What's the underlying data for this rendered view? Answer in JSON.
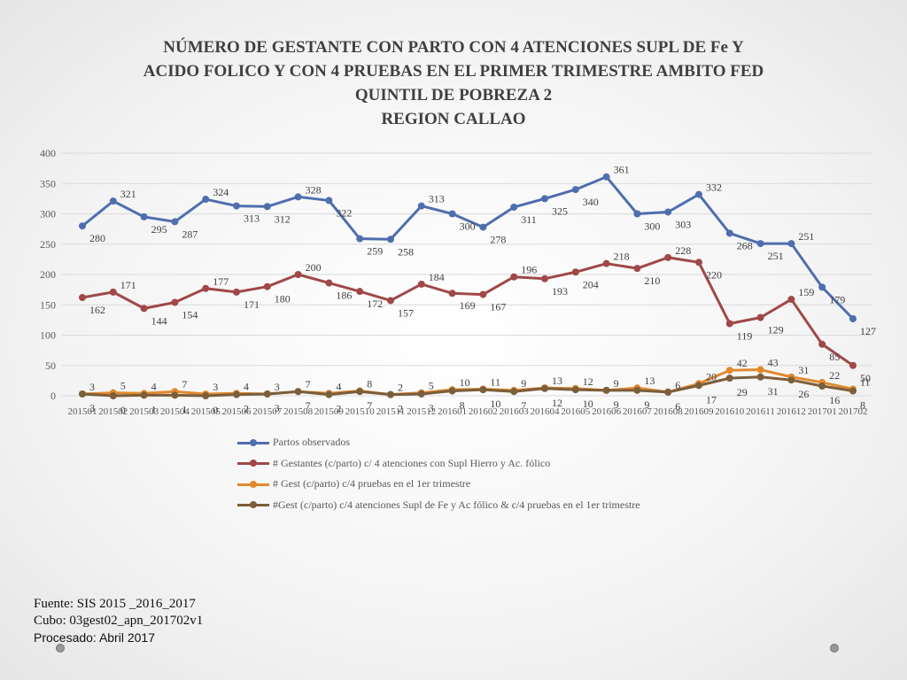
{
  "title_lines": [
    "NÚMERO DE GESTANTE  CON PARTO CON 4 ATENCIONES SUPL DE Fe Y",
    "ACIDO FOLICO  Y CON 4 PRUEBAS EN EL PRIMER TRIMESTRE AMBITO FED",
    "QUINTIL DE POBREZA  2",
    "REGION CALLAO"
  ],
  "footer": {
    "source": "Fuente: SIS 2015 _2016_2017",
    "cube": "Cubo:  03gest02_apn_201702v1",
    "processed": "Procesado: Abril 2017"
  },
  "chart_data": {
    "type": "line",
    "title": "NÚMERO DE GESTANTE  CON PARTO CON 4 ATENCIONES SUPL DE Fe Y ACIDO FOLICO  Y CON 4 PRUEBAS EN EL PRIMER TRIMESTRE AMBITO FED QUINTIL DE POBREZA  2 REGION CALLAO",
    "ylim": [
      0,
      400
    ],
    "yticks": [
      0,
      50,
      100,
      150,
      200,
      250,
      300,
      350,
      400
    ],
    "grid": true,
    "legend_position": "bottom",
    "categories": [
      "201501",
      "201502",
      "201503",
      "201504",
      "201505",
      "201506",
      "201507",
      "201508",
      "201509",
      "201510",
      "201511",
      "201512",
      "201601",
      "201602",
      "201603",
      "201604",
      "201605",
      "201606",
      "201607",
      "201608",
      "201609",
      "201610",
      "201611",
      "201612",
      "201701",
      "201702"
    ],
    "series": [
      {
        "name": "Partos observados",
        "color": "#4f6eae",
        "values": [
          280,
          321,
          295,
          287,
          324,
          313,
          312,
          328,
          322,
          259,
          258,
          313,
          300,
          278,
          311,
          325,
          340,
          361,
          300,
          303,
          332,
          268,
          251,
          251,
          179,
          127
        ]
      },
      {
        "name": "# Gestantes (c/parto) c/ 4 atenciones con Supl Hierro y Ac. fólico",
        "color": "#a04848",
        "values": [
          162,
          171,
          144,
          154,
          177,
          171,
          180,
          200,
          186,
          172,
          157,
          184,
          169,
          167,
          196,
          193,
          204,
          218,
          210,
          228,
          220,
          119,
          129,
          159,
          85,
          50
        ]
      },
      {
        "name": "# Gest (c/parto) c/4 pruebas en el 1er trimestre",
        "color": "#e2892e",
        "values": [
          3,
          5,
          4,
          7,
          3,
          4,
          3,
          7,
          4,
          8,
          2,
          5,
          10,
          11,
          9,
          13,
          12,
          9,
          13,
          6,
          20,
          42,
          43,
          31,
          22,
          11
        ]
      },
      {
        "name": "#Gest (c/parto) c/4 atenciones Supl de Fe y Ac fólico & c/4 pruebas en el 1er trimestre",
        "color": "#7b5e3b",
        "values": [
          3,
          0,
          1,
          1,
          0,
          2,
          3,
          7,
          2,
          7,
          2,
          3,
          8,
          10,
          7,
          12,
          10,
          9,
          9,
          6,
          17,
          29,
          31,
          26,
          16,
          8
        ]
      }
    ]
  }
}
